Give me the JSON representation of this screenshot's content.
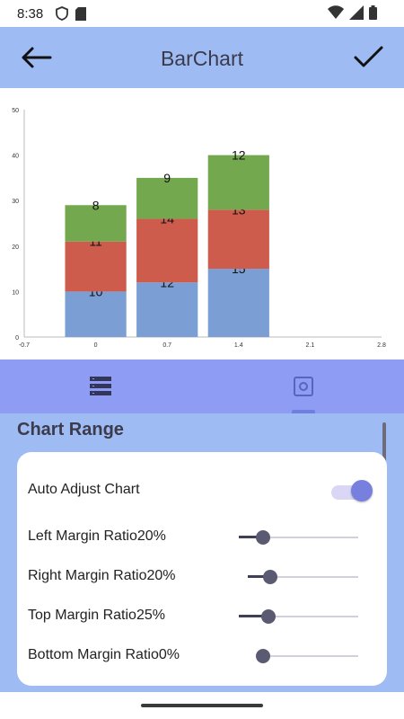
{
  "status_bar": {
    "time": "8:38",
    "left_icons": [
      "shield-icon",
      "sd-card-icon"
    ],
    "right_icons": [
      "wifi-icon",
      "signal-icon",
      "battery-icon"
    ]
  },
  "app_bar": {
    "title": "BarChart",
    "back_icon": "arrow-left-icon",
    "confirm_icon": "check-icon",
    "color": "#9fbbf3"
  },
  "chart_data": {
    "type": "bar",
    "stacked": true,
    "x": [
      0,
      0.7,
      1.4
    ],
    "x_ticks": [
      "-0.7",
      "0",
      "0.7",
      "1.4",
      "2.1",
      "2.8"
    ],
    "y_ticks": [
      "0",
      "10",
      "20",
      "30",
      "40",
      "50"
    ],
    "ylim": [
      0,
      50
    ],
    "xlim": [
      -0.7,
      2.8
    ],
    "series": [
      {
        "values": [
          10,
          12,
          15
        ],
        "color": "#7b9ed5"
      },
      {
        "values": [
          11,
          14,
          13
        ],
        "color": "#ce5c4c"
      },
      {
        "values": [
          8,
          9,
          12
        ],
        "color": "#74a84e"
      }
    ],
    "grid": false,
    "legend": "none"
  },
  "tabs": [
    {
      "icon": "list-icon"
    },
    {
      "icon": "settings-icon"
    }
  ],
  "panel": {
    "section_title": "Chart Range",
    "rows": [
      {
        "label": "Auto Adjust Chart",
        "type": "toggle",
        "on": true
      },
      {
        "label": "Left Margin Ratio20%",
        "type": "slider",
        "value": 0.2
      },
      {
        "label": "Right Margin Ratio20%",
        "type": "slider",
        "value": 0.2
      },
      {
        "label": "Top Margin Ratio25%",
        "type": "slider",
        "value": 0.25
      },
      {
        "label": "Bottom Margin Ratio0%",
        "type": "slider",
        "value": 0.0
      }
    ]
  }
}
